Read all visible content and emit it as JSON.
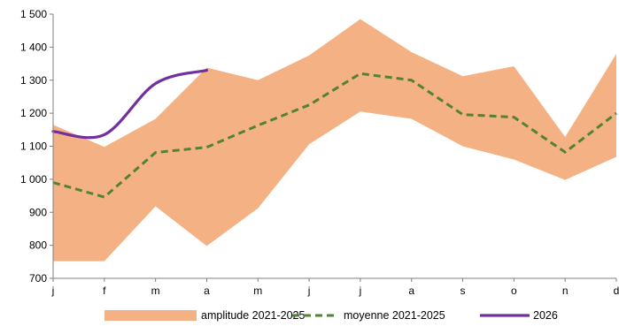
{
  "chart_data": {
    "type": "area",
    "categories": [
      "j",
      "f",
      "m",
      "a",
      "m",
      "j",
      "j",
      "a",
      "s",
      "o",
      "n",
      "d"
    ],
    "ylim": [
      700,
      1500
    ],
    "yticks": [
      700,
      800,
      900,
      1000,
      1100,
      1200,
      1300,
      1400,
      1500
    ],
    "ytick_labels": [
      "700",
      "800",
      "900",
      "1 000",
      "1 100",
      "1 200",
      "1 300",
      "1 400",
      "1 500"
    ],
    "grid": false,
    "legend_position": "bottom",
    "series": [
      {
        "name": "amplitude 2021-2025",
        "kind": "range",
        "color": "#f4b183",
        "low": [
          752,
          752,
          918,
          798,
          912,
          1106,
          1205,
          1183,
          1100,
          1060,
          998,
          1068
        ],
        "high": [
          1165,
          1098,
          1183,
          1338,
          1300,
          1375,
          1485,
          1385,
          1312,
          1342,
          1128,
          1380
        ]
      },
      {
        "name": "moyenne 2021-2025",
        "kind": "line",
        "style": "dashed",
        "color": "#548235",
        "values": [
          990,
          946,
          1081,
          1097,
          1163,
          1225,
          1320,
          1300,
          1196,
          1188,
          1082,
          1200
        ]
      },
      {
        "name": "2026",
        "kind": "line",
        "style": "solid",
        "color": "#7030a0",
        "values": [
          1145,
          1135,
          1290,
          1330,
          null,
          null,
          null,
          null,
          null,
          null,
          null,
          null
        ]
      }
    ]
  }
}
